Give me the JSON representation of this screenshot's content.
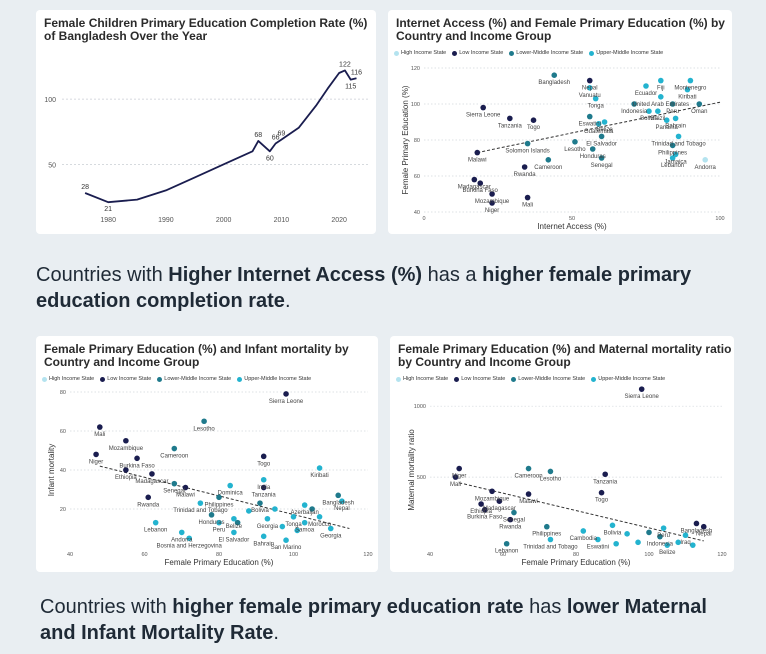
{
  "colors": {
    "high": "#b4e3ef",
    "low": "#1a1d4f",
    "lower_middle": "#1f7a8c",
    "upper_middle": "#23b3cf",
    "line": "#1a1d4f"
  },
  "legend": [
    {
      "key": "high",
      "label": "High Income State"
    },
    {
      "key": "low",
      "label": "Low Income State"
    },
    {
      "key": "lower_middle",
      "label": "Lower-Middle Income State"
    },
    {
      "key": "upper_middle",
      "label": "Upper-Middle Income State"
    }
  ],
  "captions": {
    "c1_parts": [
      "Countries with ",
      "Higher Internet Access (%)",
      " has a ",
      "higher female primary education completion rate",
      "."
    ],
    "c2_parts": [
      "Countries with ",
      "higher female primary education rate",
      " has ",
      "lower Maternal and Infant Mortality Rate",
      "."
    ]
  },
  "chart_data": [
    {
      "type": "line",
      "title": "Female Children Primary Education Completion Rate (%) of Bangladesh Over the Year",
      "xlabel": "",
      "ylabel": "",
      "xlim": [
        1972,
        2025
      ],
      "ylim": [
        15,
        130
      ],
      "xticks": [
        1980,
        1990,
        2000,
        2010,
        2020
      ],
      "yticks": [
        50,
        100
      ],
      "x": [
        1976,
        1980,
        1985,
        1990,
        1995,
        2000,
        2005,
        2006,
        2008,
        2009,
        2010,
        2013,
        2016,
        2018,
        2020,
        2021,
        2022,
        2023
      ],
      "y": [
        28,
        21,
        23,
        30,
        40,
        50,
        60,
        68,
        60,
        66,
        69,
        78,
        95,
        108,
        120,
        122,
        115,
        116
      ],
      "labels": [
        {
          "x": 1976,
          "y": 28,
          "text": "28"
        },
        {
          "x": 1980,
          "y": 21,
          "text": "21"
        },
        {
          "x": 2006,
          "y": 68,
          "text": "68"
        },
        {
          "x": 2008,
          "y": 60,
          "text": "60"
        },
        {
          "x": 2009,
          "y": 66,
          "text": "66"
        },
        {
          "x": 2010,
          "y": 69,
          "text": "69"
        },
        {
          "x": 2021,
          "y": 122,
          "text": "122"
        },
        {
          "x": 2022,
          "y": 115,
          "text": "115"
        },
        {
          "x": 2023,
          "y": 116,
          "text": "116"
        }
      ]
    },
    {
      "type": "scatter",
      "title": "Internet Access (%) and Female Primary Education (%) by Country and Income Group",
      "xlabel": "Internet Access (%)",
      "ylabel": "Female Primary Education (%)",
      "xlim": [
        0,
        100
      ],
      "ylim": [
        40,
        120
      ],
      "xticks": [
        0,
        50,
        100
      ],
      "yticks": [
        40,
        60,
        80,
        100,
        120
      ],
      "trend": [
        [
          18,
          73
        ],
        [
          100,
          101
        ]
      ],
      "points": [
        {
          "x": 18,
          "y": 73,
          "g": "low",
          "label": "Malawi"
        },
        {
          "x": 20,
          "y": 98,
          "g": "low",
          "label": "Sierra Leone"
        },
        {
          "x": 29,
          "y": 92,
          "g": "low",
          "label": "Tanzania"
        },
        {
          "x": 37,
          "y": 91,
          "g": "low",
          "label": "Togo"
        },
        {
          "x": 17,
          "y": 58,
          "g": "low",
          "label": "Madagascar"
        },
        {
          "x": 19,
          "y": 56,
          "g": "low",
          "label": "Burkina Faso"
        },
        {
          "x": 23,
          "y": 50,
          "g": "low",
          "label": "Mozambique"
        },
        {
          "x": 23,
          "y": 45,
          "g": "low",
          "label": "Niger"
        },
        {
          "x": 35,
          "y": 48,
          "g": "low",
          "label": "Mali"
        },
        {
          "x": 34,
          "y": 65,
          "g": "low",
          "label": "Rwanda"
        },
        {
          "x": 56,
          "y": 113,
          "g": "low",
          "label": "Nepal"
        },
        {
          "x": 44,
          "y": 116,
          "g": "lower_middle",
          "label": "Bangladesh"
        },
        {
          "x": 56,
          "y": 109,
          "g": "upper_middle",
          "label": "Vanuatu"
        },
        {
          "x": 58,
          "y": 103,
          "g": "upper_middle",
          "label": "Tonga"
        },
        {
          "x": 56,
          "y": 93,
          "g": "lower_middle",
          "label": "Eswatini"
        },
        {
          "x": 59,
          "y": 89,
          "g": "upper_middle",
          "label": "Guatemala"
        },
        {
          "x": 61,
          "y": 90,
          "g": "upper_middle",
          "label": "Belize"
        },
        {
          "x": 60,
          "y": 82,
          "g": "lower_middle",
          "label": "El Salvador"
        },
        {
          "x": 51,
          "y": 79,
          "g": "lower_middle",
          "label": "Lesotho"
        },
        {
          "x": 35,
          "y": 78,
          "g": "lower_middle",
          "label": "Solomon Islands"
        },
        {
          "x": 42,
          "y": 69,
          "g": "lower_middle",
          "label": "Cameroon"
        },
        {
          "x": 57,
          "y": 75,
          "g": "lower_middle",
          "label": "Honduras"
        },
        {
          "x": 60,
          "y": 70,
          "g": "lower_middle",
          "label": "Senegal"
        },
        {
          "x": 71,
          "y": 100,
          "g": "lower_middle",
          "label": "Indonesia"
        },
        {
          "x": 75,
          "y": 110,
          "g": "upper_middle",
          "label": "Ecuador"
        },
        {
          "x": 80,
          "y": 113,
          "g": "upper_middle",
          "label": "Fiji"
        },
        {
          "x": 90,
          "y": 113,
          "g": "upper_middle",
          "label": "Montenegro"
        },
        {
          "x": 89,
          "y": 108,
          "g": "upper_middle",
          "label": "Kiribati"
        },
        {
          "x": 80,
          "y": 104,
          "g": "upper_middle",
          "label": "United Arab Emirates"
        },
        {
          "x": 76,
          "y": 96,
          "g": "upper_middle",
          "label": "Bolivia"
        },
        {
          "x": 84,
          "y": 100,
          "g": "lower_middle",
          "label": "Peru"
        },
        {
          "x": 79,
          "y": 96,
          "g": "upper_middle",
          "label": "Brazil"
        },
        {
          "x": 93,
          "y": 100,
          "g": "lower_middle",
          "label": "Oman"
        },
        {
          "x": 85,
          "y": 92,
          "g": "upper_middle",
          "label": "Bahrain"
        },
        {
          "x": 82,
          "y": 91,
          "g": "upper_middle",
          "label": "Panama"
        },
        {
          "x": 86,
          "y": 82,
          "g": "upper_middle",
          "label": "Trinidad and Tobago"
        },
        {
          "x": 84,
          "y": 77,
          "g": "lower_middle",
          "label": "Philippines"
        },
        {
          "x": 85,
          "y": 72,
          "g": "upper_middle",
          "label": "Jamaica"
        },
        {
          "x": 84,
          "y": 70,
          "g": "upper_middle",
          "label": "Lebanon"
        },
        {
          "x": 95,
          "y": 69,
          "g": "high",
          "label": "Andorra"
        }
      ]
    },
    {
      "type": "scatter",
      "title": "Female Primary Education (%) and Infant mortality by Country and Income Group",
      "xlabel": "Female Primary Education (%)",
      "ylabel": "Infant mortality",
      "xlim": [
        40,
        120
      ],
      "ylim": [
        0,
        80
      ],
      "xticks": [
        40,
        60,
        80,
        100,
        120
      ],
      "yticks": [
        20,
        40,
        60,
        80
      ],
      "trend": [
        [
          48,
          42
        ],
        [
          115,
          10
        ]
      ],
      "points": [
        {
          "x": 98,
          "y": 79,
          "g": "low",
          "label": "Sierra Leone"
        },
        {
          "x": 48,
          "y": 62,
          "g": "low",
          "label": "Mali"
        },
        {
          "x": 76,
          "y": 65,
          "g": "lower_middle",
          "label": "Lesotho"
        },
        {
          "x": 55,
          "y": 55,
          "g": "low",
          "label": "Mozambique"
        },
        {
          "x": 47,
          "y": 48,
          "g": "low",
          "label": "Niger"
        },
        {
          "x": 68,
          "y": 51,
          "g": "lower_middle",
          "label": "Cameroon"
        },
        {
          "x": 58,
          "y": 46,
          "g": "low",
          "label": "Burkina Faso"
        },
        {
          "x": 92,
          "y": 47,
          "g": "low",
          "label": "Togo"
        },
        {
          "x": 62,
          "y": 38,
          "g": "low",
          "label": "Madagascar"
        },
        {
          "x": 55,
          "y": 40,
          "g": "low",
          "label": "Ethiopia"
        },
        {
          "x": 68,
          "y": 33,
          "g": "lower_middle",
          "label": "Senegal"
        },
        {
          "x": 71,
          "y": 31,
          "g": "low",
          "label": "Malawi"
        },
        {
          "x": 83,
          "y": 32,
          "g": "upper_middle",
          "label": "Dominica"
        },
        {
          "x": 92,
          "y": 35,
          "g": "upper_middle",
          "label": "India"
        },
        {
          "x": 92,
          "y": 31,
          "g": "low",
          "label": "Tanzania"
        },
        {
          "x": 107,
          "y": 41,
          "g": "upper_middle",
          "label": "Kiribati"
        },
        {
          "x": 80,
          "y": 26,
          "g": "lower_middle",
          "label": "Philippines"
        },
        {
          "x": 75,
          "y": 23,
          "g": "upper_middle",
          "label": "Trinidad and Tobago"
        },
        {
          "x": 91,
          "y": 23,
          "g": "lower_middle",
          "label": "Bolivia"
        },
        {
          "x": 61,
          "y": 26,
          "g": "low",
          "label": "Rwanda"
        },
        {
          "x": 112,
          "y": 27,
          "g": "lower_middle",
          "label": "Bangladesh"
        },
        {
          "x": 113,
          "y": 24,
          "g": "upper_middle",
          "label": "Nepal"
        },
        {
          "x": 103,
          "y": 22,
          "g": "upper_middle",
          "label": "Azerbaijan"
        },
        {
          "x": 78,
          "y": 17,
          "g": "lower_middle",
          "label": "Honduras"
        },
        {
          "x": 84,
          "y": 15,
          "g": "upper_middle",
          "label": "Belize"
        },
        {
          "x": 80,
          "y": 13,
          "g": "upper_middle",
          "label": "Peru"
        },
        {
          "x": 93,
          "y": 15,
          "g": "upper_middle",
          "label": "Georgia"
        },
        {
          "x": 100,
          "y": 16,
          "g": "upper_middle",
          "label": "Tonga"
        },
        {
          "x": 107,
          "y": 16,
          "g": "upper_middle",
          "label": "Morocco"
        },
        {
          "x": 103,
          "y": 13,
          "g": "upper_middle",
          "label": "Samoa"
        },
        {
          "x": 63,
          "y": 13,
          "g": "upper_middle",
          "label": "Lebanon"
        },
        {
          "x": 84,
          "y": 8,
          "g": "upper_middle",
          "label": "El Salvador"
        },
        {
          "x": 70,
          "y": 8,
          "g": "upper_middle",
          "label": "Andorra"
        },
        {
          "x": 92,
          "y": 6,
          "g": "upper_middle",
          "label": "Bahrain"
        },
        {
          "x": 98,
          "y": 4,
          "g": "upper_middle",
          "label": "San Marino"
        },
        {
          "x": 110,
          "y": 10,
          "g": "upper_middle",
          "label": "Georgia"
        },
        {
          "x": 72,
          "y": 5,
          "g": "upper_middle",
          "label": "Bosnia and Herzegovina"
        },
        {
          "x": 85,
          "y": 13,
          "g": "lower_middle"
        },
        {
          "x": 88,
          "y": 19,
          "g": "upper_middle"
        },
        {
          "x": 95,
          "y": 20,
          "g": "upper_middle"
        },
        {
          "x": 97,
          "y": 11,
          "g": "upper_middle"
        },
        {
          "x": 101,
          "y": 9,
          "g": "upper_middle"
        },
        {
          "x": 105,
          "y": 20,
          "g": "lower_middle"
        }
      ]
    },
    {
      "type": "scatter",
      "title": "Female Primary Education (%) and Maternal mortality ratio by Country and Income Group",
      "xlabel": "Female Primary Education (%)",
      "ylabel": "Maternal mortality ratio",
      "xlim": [
        40,
        120
      ],
      "ylim": [
        0,
        1100
      ],
      "xticks": [
        40,
        60,
        80,
        100,
        120
      ],
      "yticks": [
        500,
        1000
      ],
      "trend": [
        [
          48,
          460
        ],
        [
          115,
          50
        ]
      ],
      "points": [
        {
          "x": 98,
          "y": 1120,
          "g": "low",
          "label": "Sierra Leone"
        },
        {
          "x": 48,
          "y": 560,
          "g": "low",
          "label": "Niger"
        },
        {
          "x": 47,
          "y": 500,
          "g": "low",
          "label": "Mali"
        },
        {
          "x": 67,
          "y": 560,
          "g": "lower_middle",
          "label": "Cameroon"
        },
        {
          "x": 73,
          "y": 540,
          "g": "lower_middle",
          "label": "Lesotho"
        },
        {
          "x": 88,
          "y": 520,
          "g": "low",
          "label": "Tanzania"
        },
        {
          "x": 87,
          "y": 390,
          "g": "low",
          "label": "Togo"
        },
        {
          "x": 57,
          "y": 400,
          "g": "low",
          "label": "Mozambique"
        },
        {
          "x": 67,
          "y": 380,
          "g": "low",
          "label": "Malawi"
        },
        {
          "x": 59,
          "y": 330,
          "g": "low",
          "label": "Madagascar"
        },
        {
          "x": 54,
          "y": 310,
          "g": "low",
          "label": "Ethiopia"
        },
        {
          "x": 55,
          "y": 270,
          "g": "low",
          "label": "Burkina Faso"
        },
        {
          "x": 63,
          "y": 250,
          "g": "lower_middle",
          "label": "Senegal"
        },
        {
          "x": 62,
          "y": 200,
          "g": "low",
          "label": "Rwanda"
        },
        {
          "x": 90,
          "y": 160,
          "g": "upper_middle",
          "label": "Bolivia"
        },
        {
          "x": 113,
          "y": 173,
          "g": "low",
          "label": "Bangladesh"
        },
        {
          "x": 104,
          "y": 140,
          "g": "upper_middle",
          "label": "Peru"
        },
        {
          "x": 115,
          "y": 150,
          "g": "low",
          "label": "Nepal"
        },
        {
          "x": 72,
          "y": 150,
          "g": "lower_middle",
          "label": "Philippines"
        },
        {
          "x": 82,
          "y": 120,
          "g": "upper_middle",
          "label": "Cambodia"
        },
        {
          "x": 73,
          "y": 60,
          "g": "upper_middle",
          "label": "Trinidad and Tobago"
        },
        {
          "x": 86,
          "y": 60,
          "g": "upper_middle",
          "label": "Eswatini"
        },
        {
          "x": 103,
          "y": 80,
          "g": "lower_middle",
          "label": "Indonesia"
        },
        {
          "x": 110,
          "y": 90,
          "g": "upper_middle",
          "label": "Iraq"
        },
        {
          "x": 105,
          "y": 20,
          "g": "upper_middle",
          "label": "Belize"
        },
        {
          "x": 61,
          "y": 30,
          "g": "lower_middle",
          "label": "Lebanon"
        },
        {
          "x": 94,
          "y": 100,
          "g": "upper_middle"
        },
        {
          "x": 97,
          "y": 40,
          "g": "upper_middle"
        },
        {
          "x": 100,
          "y": 110,
          "g": "lower_middle"
        },
        {
          "x": 108,
          "y": 40,
          "g": "upper_middle"
        },
        {
          "x": 91,
          "y": 30,
          "g": "upper_middle"
        },
        {
          "x": 112,
          "y": 20,
          "g": "upper_middle"
        }
      ]
    }
  ]
}
